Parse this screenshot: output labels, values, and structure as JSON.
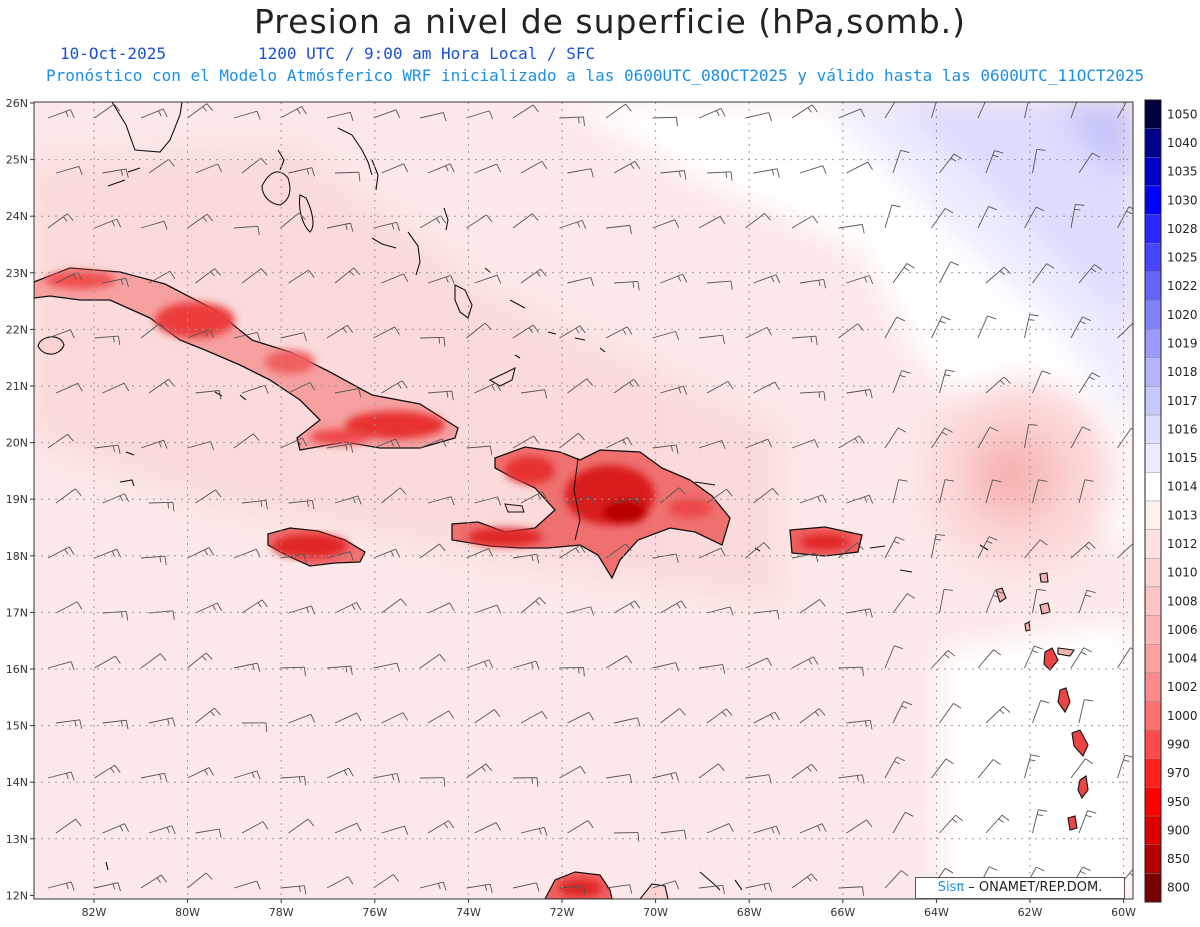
{
  "header": {
    "title": "Presion a nivel de superficie (hPa,somb.)",
    "date": "10-Oct-2025",
    "time": "1200 UTC / 9:00 am Hora Local / SFC",
    "forecast_note": "Pronóstico con el Modelo Atmósferico WRF inicializado a las 0600UTC_08OCT2025 y válido hasta las  0600UTC_11OCT2025"
  },
  "axes": {
    "lat_labels": [
      "26N",
      "25N",
      "24N",
      "23N",
      "22N",
      "21N",
      "20N",
      "19N",
      "18N",
      "17N",
      "16N",
      "15N",
      "14N",
      "13N",
      "12N"
    ],
    "lon_labels": [
      "82W",
      "80W",
      "78W",
      "76W",
      "74W",
      "72W",
      "70W",
      "68W",
      "66W",
      "64W",
      "62W",
      "60W"
    ]
  },
  "colorbar": {
    "levels": [
      "1050",
      "1040",
      "1035",
      "1030",
      "1028",
      "1025",
      "1022",
      "1020",
      "1019",
      "1018",
      "1017",
      "1016",
      "1015",
      "1014",
      "1013",
      "1012",
      "1010",
      "1008",
      "1006",
      "1004",
      "1002",
      "1000",
      "990",
      "970",
      "950",
      "900",
      "850",
      "800"
    ],
    "colors": [
      "#00003c",
      "#00008c",
      "#0000c8",
      "#0000ff",
      "#2828ff",
      "#4646ff",
      "#6464ff",
      "#8282ff",
      "#9b9bff",
      "#b4b4ff",
      "#c8c8ff",
      "#dcdcff",
      "#ebebff",
      "#ffffff",
      "#fff0f0",
      "#ffe1e1",
      "#ffd2d2",
      "#ffc3c3",
      "#ffb4b4",
      "#ffa0a0",
      "#ff8c8c",
      "#ff7070",
      "#ff4b4b",
      "#ff2020",
      "#ff0000",
      "#dc0000",
      "#b40000",
      "#780000"
    ]
  },
  "credit": {
    "brand": "Sisπ",
    "text": " – ONAMET/REP.DOM."
  }
}
